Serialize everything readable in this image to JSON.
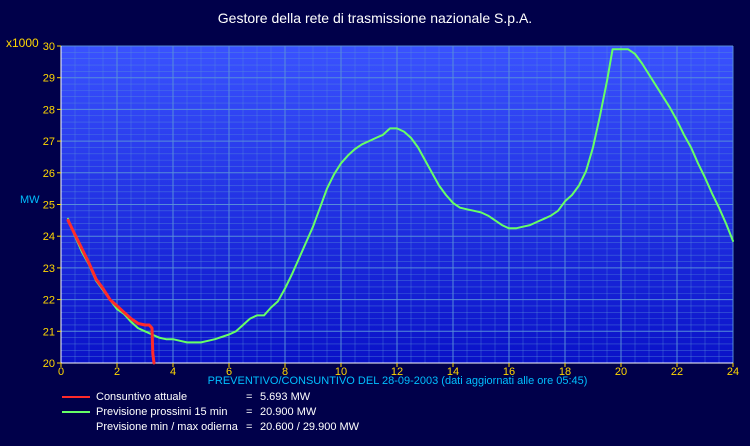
{
  "chart_data": {
    "type": "line",
    "title": "Gestore della rete di trasmissione nazionale S.p.A.",
    "y_multiplier": "x1000",
    "ylabel": "MW",
    "caption": "PREVENTIVO/CONSUNTIVO DEL 28-09-2003 (dati aggiornati alle ore 05:45)",
    "xlim": [
      0,
      24
    ],
    "ylim": [
      20,
      30
    ],
    "x_ticks": [
      "0",
      "2",
      "4",
      "6",
      "8",
      "10",
      "12",
      "14",
      "16",
      "18",
      "20",
      "22",
      "24"
    ],
    "y_ticks": [
      "20",
      "21",
      "22",
      "23",
      "24",
      "25",
      "26",
      "27",
      "28",
      "29",
      "30"
    ],
    "grid": true,
    "colors": {
      "background": "#00004a",
      "plot_top": "#3a52ff",
      "plot_bottom": "#0a12c8",
      "grid": "#5a90d8",
      "actual": "#ff2a2a",
      "forecast": "#66ff66",
      "ticks": "#ffd700"
    },
    "series": [
      {
        "name": "Consuntivo attuale",
        "color": "#ff2a2a",
        "points": [
          [
            0.25,
            24.5
          ],
          [
            0.5,
            24.05
          ],
          [
            0.75,
            23.6
          ],
          [
            1.0,
            23.15
          ],
          [
            1.25,
            22.65
          ],
          [
            1.5,
            22.35
          ],
          [
            1.75,
            22.0
          ],
          [
            2.0,
            21.8
          ],
          [
            2.25,
            21.6
          ],
          [
            2.5,
            21.4
          ],
          [
            2.75,
            21.25
          ],
          [
            3.0,
            21.2
          ],
          [
            3.15,
            21.2
          ],
          [
            3.25,
            21.1
          ],
          [
            3.28,
            20.3
          ],
          [
            3.32,
            20.0
          ]
        ]
      },
      {
        "name": "Previsione  prossimi  15 min",
        "color": "#66ff66",
        "points": [
          [
            0.25,
            24.55
          ],
          [
            0.5,
            24.0
          ],
          [
            0.75,
            23.5
          ],
          [
            1.0,
            23.1
          ],
          [
            1.25,
            22.6
          ],
          [
            1.5,
            22.3
          ],
          [
            1.75,
            22.0
          ],
          [
            2.0,
            21.7
          ],
          [
            2.25,
            21.55
          ],
          [
            2.5,
            21.3
          ],
          [
            2.75,
            21.1
          ],
          [
            3.0,
            21.0
          ],
          [
            3.25,
            20.9
          ],
          [
            3.5,
            20.8
          ],
          [
            3.75,
            20.75
          ],
          [
            4.0,
            20.75
          ],
          [
            4.25,
            20.7
          ],
          [
            4.5,
            20.65
          ],
          [
            5.0,
            20.65
          ],
          [
            5.25,
            20.7
          ],
          [
            5.5,
            20.75
          ],
          [
            6.0,
            20.9
          ],
          [
            6.25,
            21.0
          ],
          [
            6.5,
            21.2
          ],
          [
            6.75,
            21.4
          ],
          [
            7.0,
            21.5
          ],
          [
            7.25,
            21.5
          ],
          [
            7.5,
            21.75
          ],
          [
            7.75,
            21.95
          ],
          [
            8.0,
            22.35
          ],
          [
            8.25,
            22.8
          ],
          [
            8.5,
            23.3
          ],
          [
            8.75,
            23.8
          ],
          [
            9.0,
            24.3
          ],
          [
            9.25,
            24.9
          ],
          [
            9.5,
            25.5
          ],
          [
            9.75,
            25.95
          ],
          [
            10.0,
            26.3
          ],
          [
            10.25,
            26.55
          ],
          [
            10.5,
            26.75
          ],
          [
            10.75,
            26.9
          ],
          [
            11.0,
            27.0
          ],
          [
            11.25,
            27.1
          ],
          [
            11.5,
            27.2
          ],
          [
            11.75,
            27.4
          ],
          [
            12.0,
            27.4
          ],
          [
            12.25,
            27.3
          ],
          [
            12.5,
            27.1
          ],
          [
            12.75,
            26.8
          ],
          [
            13.0,
            26.4
          ],
          [
            13.25,
            26.0
          ],
          [
            13.5,
            25.6
          ],
          [
            13.75,
            25.3
          ],
          [
            14.0,
            25.05
          ],
          [
            14.25,
            24.9
          ],
          [
            14.5,
            24.85
          ],
          [
            14.75,
            24.8
          ],
          [
            15.0,
            24.75
          ],
          [
            15.25,
            24.65
          ],
          [
            15.5,
            24.5
          ],
          [
            15.75,
            24.35
          ],
          [
            16.0,
            24.25
          ],
          [
            16.25,
            24.25
          ],
          [
            16.5,
            24.3
          ],
          [
            16.75,
            24.35
          ],
          [
            17.0,
            24.45
          ],
          [
            17.25,
            24.55
          ],
          [
            17.5,
            24.65
          ],
          [
            17.75,
            24.8
          ],
          [
            18.0,
            25.1
          ],
          [
            18.25,
            25.3
          ],
          [
            18.5,
            25.6
          ],
          [
            18.75,
            26.05
          ],
          [
            19.0,
            26.8
          ],
          [
            19.25,
            27.8
          ],
          [
            19.5,
            28.9
          ],
          [
            19.7,
            29.9
          ],
          [
            20.0,
            29.9
          ],
          [
            20.25,
            29.9
          ],
          [
            20.5,
            29.75
          ],
          [
            20.75,
            29.45
          ],
          [
            21.0,
            29.1
          ],
          [
            21.25,
            28.75
          ],
          [
            21.5,
            28.4
          ],
          [
            21.75,
            28.05
          ],
          [
            22.0,
            27.65
          ],
          [
            22.25,
            27.2
          ],
          [
            22.5,
            26.8
          ],
          [
            22.75,
            26.3
          ],
          [
            23.0,
            25.85
          ],
          [
            23.25,
            25.35
          ],
          [
            23.5,
            24.9
          ],
          [
            23.75,
            24.4
          ],
          [
            24.0,
            23.85
          ]
        ]
      }
    ],
    "legend": [
      {
        "label": "Consuntivo attuale",
        "eq": "=",
        "value": "5.693 MW",
        "color": "#ff2a2a"
      },
      {
        "label": "Previsione  prossimi  15 min",
        "eq": "=",
        "value": "20.900 MW",
        "color": "#66ff66"
      },
      {
        "label": "Previsione min / max odierna",
        "eq": "=",
        "value": "20.600 / 29.900 MW",
        "color": ""
      }
    ]
  }
}
